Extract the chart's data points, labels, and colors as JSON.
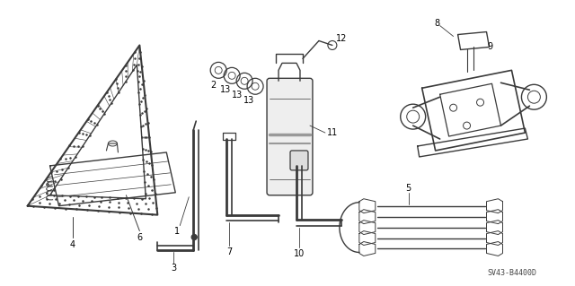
{
  "background_color": "#ffffff",
  "fig_width": 6.4,
  "fig_height": 3.19,
  "dpi": 100,
  "line_color": "#3a3a3a",
  "watermark": "SV43-B4400D",
  "label_fontsize": 7.0,
  "watermark_fontsize": 6.0
}
